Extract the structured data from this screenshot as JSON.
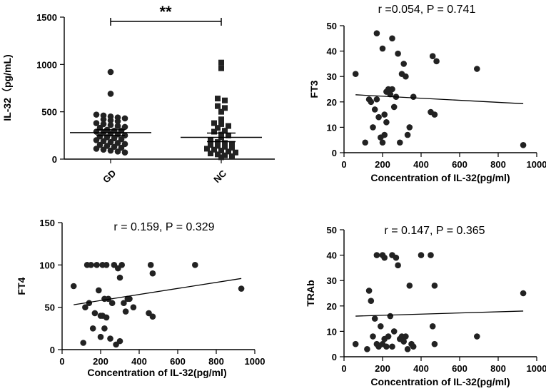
{
  "chart_data": [
    {
      "id": "A",
      "type": "scatter",
      "subtype": "dot-plot",
      "ylabel": "IL-32（pg/mL)",
      "categories": [
        "GD",
        "NC"
      ],
      "ylim": [
        0,
        1500
      ],
      "yticks": [
        0,
        500,
        1000,
        1500
      ],
      "significance": "**",
      "groups": [
        {
          "name": "GD",
          "marker": "circle",
          "mean": 280,
          "sem": 30,
          "values": [
            920,
            690,
            470,
            460,
            450,
            440,
            430,
            420,
            410,
            400,
            380,
            370,
            360,
            350,
            340,
            330,
            310,
            300,
            300,
            290,
            280,
            270,
            260,
            250,
            240,
            230,
            220,
            210,
            200,
            190,
            180,
            170,
            160,
            150,
            140,
            130,
            120,
            110,
            100,
            90,
            80,
            70
          ]
        },
        {
          "name": "NC",
          "marker": "square",
          "mean": 230,
          "sem": 45,
          "values": [
            1020,
            960,
            640,
            620,
            560,
            540,
            500,
            420,
            380,
            370,
            350,
            330,
            300,
            290,
            260,
            250,
            230,
            200,
            180,
            170,
            160,
            150,
            140,
            130,
            120,
            110,
            100,
            90,
            80,
            70,
            60,
            50,
            40,
            30,
            20
          ]
        }
      ]
    },
    {
      "id": "B",
      "type": "scatter",
      "annotation": "r =0.054, P = 0.741",
      "xlabel": "Concentration of IL-32(pg/ml)",
      "ylabel": "FT3",
      "xlim": [
        0,
        1000
      ],
      "ylim": [
        0,
        50
      ],
      "xticks": [
        0,
        200,
        400,
        600,
        800,
        1000
      ],
      "yticks": [
        0,
        10,
        20,
        30,
        40,
        50
      ],
      "fit": {
        "x": [
          60,
          930
        ],
        "y": [
          22.8,
          19.3
        ]
      },
      "points": [
        [
          60,
          31
        ],
        [
          110,
          4
        ],
        [
          130,
          21
        ],
        [
          140,
          20
        ],
        [
          150,
          10
        ],
        [
          160,
          17
        ],
        [
          170,
          21
        ],
        [
          170,
          47
        ],
        [
          180,
          14
        ],
        [
          190,
          6
        ],
        [
          200,
          4
        ],
        [
          200,
          41
        ],
        [
          210,
          7
        ],
        [
          210,
          15
        ],
        [
          220,
          12
        ],
        [
          220,
          24
        ],
        [
          230,
          25
        ],
        [
          240,
          23
        ],
        [
          250,
          25
        ],
        [
          250,
          45
        ],
        [
          260,
          18
        ],
        [
          270,
          22
        ],
        [
          280,
          39
        ],
        [
          290,
          4
        ],
        [
          300,
          31
        ],
        [
          310,
          35
        ],
        [
          320,
          30
        ],
        [
          330,
          7
        ],
        [
          340,
          10
        ],
        [
          360,
          22
        ],
        [
          450,
          16
        ],
        [
          460,
          38
        ],
        [
          470,
          15
        ],
        [
          480,
          36
        ],
        [
          690,
          33
        ],
        [
          930,
          3
        ]
      ]
    },
    {
      "id": "C",
      "type": "scatter",
      "annotation": "r = 0.159, P = 0.329",
      "xlabel": "Concentration of IL-32(pg/ml)",
      "ylabel": "FT4",
      "xlim": [
        0,
        1000
      ],
      "ylim": [
        0,
        150
      ],
      "xticks": [
        0,
        200,
        400,
        600,
        800,
        1000
      ],
      "yticks": [
        0,
        50,
        100,
        150
      ],
      "fit": {
        "x": [
          60,
          930
        ],
        "y": [
          53,
          84
        ]
      },
      "points": [
        [
          60,
          75
        ],
        [
          110,
          8
        ],
        [
          120,
          50
        ],
        [
          130,
          100
        ],
        [
          140,
          55
        ],
        [
          150,
          100
        ],
        [
          160,
          25
        ],
        [
          170,
          43
        ],
        [
          180,
          100
        ],
        [
          190,
          70
        ],
        [
          200,
          15
        ],
        [
          200,
          40
        ],
        [
          210,
          40
        ],
        [
          210,
          100
        ],
        [
          220,
          60
        ],
        [
          220,
          25
        ],
        [
          230,
          100
        ],
        [
          230,
          38
        ],
        [
          240,
          60
        ],
        [
          250,
          13
        ],
        [
          260,
          55
        ],
        [
          270,
          100
        ],
        [
          280,
          6
        ],
        [
          290,
          96
        ],
        [
          300,
          85
        ],
        [
          300,
          10
        ],
        [
          310,
          100
        ],
        [
          320,
          55
        ],
        [
          330,
          45
        ],
        [
          340,
          60
        ],
        [
          350,
          60
        ],
        [
          370,
          50
        ],
        [
          450,
          43
        ],
        [
          460,
          100
        ],
        [
          470,
          90
        ],
        [
          470,
          39
        ],
        [
          690,
          100
        ],
        [
          930,
          72
        ]
      ]
    },
    {
      "id": "D",
      "type": "scatter",
      "annotation": "r = 0.147, P = 0.365",
      "xlabel": "Concentration of IL-32(pg/ml)",
      "ylabel": "TRAb",
      "xlim": [
        0,
        1000
      ],
      "ylim": [
        0,
        50
      ],
      "xticks": [
        0,
        200,
        400,
        600,
        800,
        1000
      ],
      "yticks": [
        0,
        10,
        20,
        30,
        40,
        50
      ],
      "fit": {
        "x": [
          60,
          930
        ],
        "y": [
          16,
          18
        ]
      },
      "points": [
        [
          60,
          5
        ],
        [
          120,
          3
        ],
        [
          130,
          26
        ],
        [
          140,
          22
        ],
        [
          150,
          8
        ],
        [
          160,
          15
        ],
        [
          170,
          5
        ],
        [
          170,
          40
        ],
        [
          180,
          4
        ],
        [
          190,
          12
        ],
        [
          200,
          40
        ],
        [
          200,
          5
        ],
        [
          210,
          7
        ],
        [
          210,
          39
        ],
        [
          220,
          4
        ],
        [
          230,
          8
        ],
        [
          240,
          16
        ],
        [
          250,
          40
        ],
        [
          250,
          4
        ],
        [
          260,
          10
        ],
        [
          270,
          39
        ],
        [
          280,
          36
        ],
        [
          290,
          7
        ],
        [
          300,
          8
        ],
        [
          310,
          6
        ],
        [
          320,
          8
        ],
        [
          330,
          3
        ],
        [
          340,
          28
        ],
        [
          350,
          5
        ],
        [
          360,
          4
        ],
        [
          400,
          40
        ],
        [
          450,
          40
        ],
        [
          460,
          12
        ],
        [
          470,
          28
        ],
        [
          470,
          5
        ],
        [
          690,
          8
        ],
        [
          930,
          25
        ]
      ]
    }
  ]
}
